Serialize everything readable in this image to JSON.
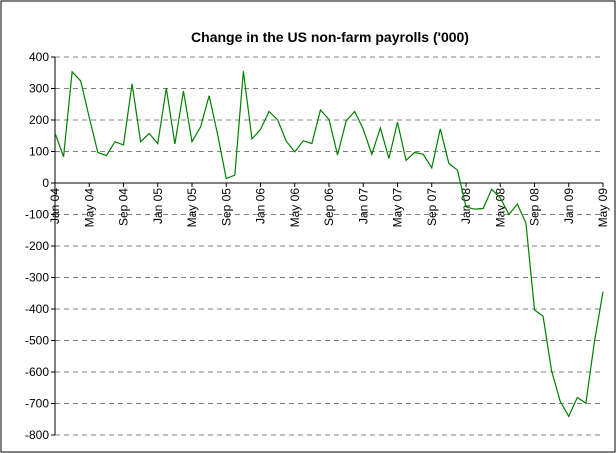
{
  "chart_data": {
    "type": "line",
    "title": "Change in the US non-farm payrolls ('000)",
    "categories": [
      "Jan 04",
      null,
      null,
      null,
      "May 04",
      null,
      null,
      null,
      "Sep 04",
      null,
      null,
      null,
      "Jan 05",
      null,
      null,
      null,
      "May 05",
      null,
      null,
      null,
      "Sep 05",
      null,
      null,
      null,
      "Jan 06",
      null,
      null,
      null,
      "May 06",
      null,
      null,
      null,
      "Sep 06",
      null,
      null,
      null,
      "Jan 07",
      null,
      null,
      null,
      "May 07",
      null,
      null,
      null,
      "Sep 07",
      null,
      null,
      null,
      "Jan 08",
      null,
      null,
      null,
      "May 08",
      null,
      null,
      null,
      "Sep 08",
      null,
      null,
      null,
      "Jan 09",
      null,
      null,
      null,
      "May 09"
    ],
    "series": [
      {
        "name": "Change in the US non-farm payrolls",
        "color": "#008000",
        "values": [
          159,
          83,
          353,
          324,
          208,
          97,
          87,
          131,
          121,
          315,
          131,
          157,
          125,
          301,
          124,
          292,
          131,
          178,
          277,
          153,
          14,
          25,
          355,
          140,
          170,
          227,
          201,
          133,
          99,
          134,
          125,
          232,
          202,
          89,
          197,
          227,
          171,
          91,
          175,
          78,
          193,
          72,
          97,
          91,
          48,
          172,
          62,
          41,
          -76,
          -83,
          -81,
          -20,
          -47,
          -100,
          -67,
          -127,
          -403,
          -423,
          -597,
          -693,
          -741,
          -681,
          -699,
          -504,
          -345
        ]
      }
    ],
    "ylim": [
      -800,
      400
    ],
    "yticks": [
      -800,
      -700,
      -600,
      -500,
      -400,
      -300,
      -200,
      -100,
      0,
      100,
      200,
      300,
      400
    ],
    "grid": true
  }
}
